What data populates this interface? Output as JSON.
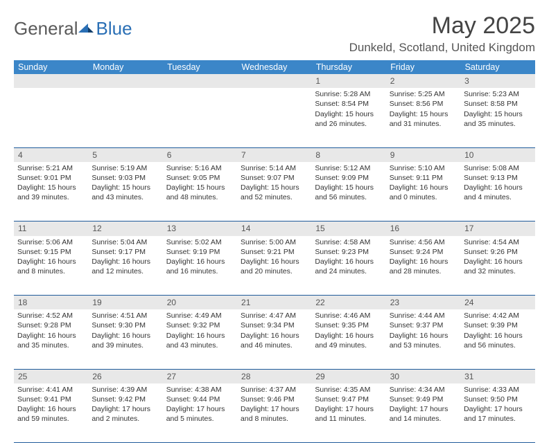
{
  "logo": {
    "part1": "General",
    "part2": "Blue"
  },
  "title": "May 2025",
  "location": "Dunkeld, Scotland, United Kingdom",
  "colors": {
    "header_bg": "#3b86c8",
    "header_text": "#ffffff",
    "daynum_bg": "#e8e8e8",
    "row_divider": "#1d5a9a",
    "logo_blue": "#2a6fb5",
    "logo_gray": "#5a5a5a"
  },
  "weekdays": [
    "Sunday",
    "Monday",
    "Tuesday",
    "Wednesday",
    "Thursday",
    "Friday",
    "Saturday"
  ],
  "weeks": [
    [
      null,
      null,
      null,
      null,
      {
        "n": "1",
        "sunrise": "5:28 AM",
        "sunset": "8:54 PM",
        "dl": "15 hours and 26 minutes."
      },
      {
        "n": "2",
        "sunrise": "5:25 AM",
        "sunset": "8:56 PM",
        "dl": "15 hours and 31 minutes."
      },
      {
        "n": "3",
        "sunrise": "5:23 AM",
        "sunset": "8:58 PM",
        "dl": "15 hours and 35 minutes."
      }
    ],
    [
      {
        "n": "4",
        "sunrise": "5:21 AM",
        "sunset": "9:01 PM",
        "dl": "15 hours and 39 minutes."
      },
      {
        "n": "5",
        "sunrise": "5:19 AM",
        "sunset": "9:03 PM",
        "dl": "15 hours and 43 minutes."
      },
      {
        "n": "6",
        "sunrise": "5:16 AM",
        "sunset": "9:05 PM",
        "dl": "15 hours and 48 minutes."
      },
      {
        "n": "7",
        "sunrise": "5:14 AM",
        "sunset": "9:07 PM",
        "dl": "15 hours and 52 minutes."
      },
      {
        "n": "8",
        "sunrise": "5:12 AM",
        "sunset": "9:09 PM",
        "dl": "15 hours and 56 minutes."
      },
      {
        "n": "9",
        "sunrise": "5:10 AM",
        "sunset": "9:11 PM",
        "dl": "16 hours and 0 minutes."
      },
      {
        "n": "10",
        "sunrise": "5:08 AM",
        "sunset": "9:13 PM",
        "dl": "16 hours and 4 minutes."
      }
    ],
    [
      {
        "n": "11",
        "sunrise": "5:06 AM",
        "sunset": "9:15 PM",
        "dl": "16 hours and 8 minutes."
      },
      {
        "n": "12",
        "sunrise": "5:04 AM",
        "sunset": "9:17 PM",
        "dl": "16 hours and 12 minutes."
      },
      {
        "n": "13",
        "sunrise": "5:02 AM",
        "sunset": "9:19 PM",
        "dl": "16 hours and 16 minutes."
      },
      {
        "n": "14",
        "sunrise": "5:00 AM",
        "sunset": "9:21 PM",
        "dl": "16 hours and 20 minutes."
      },
      {
        "n": "15",
        "sunrise": "4:58 AM",
        "sunset": "9:23 PM",
        "dl": "16 hours and 24 minutes."
      },
      {
        "n": "16",
        "sunrise": "4:56 AM",
        "sunset": "9:24 PM",
        "dl": "16 hours and 28 minutes."
      },
      {
        "n": "17",
        "sunrise": "4:54 AM",
        "sunset": "9:26 PM",
        "dl": "16 hours and 32 minutes."
      }
    ],
    [
      {
        "n": "18",
        "sunrise": "4:52 AM",
        "sunset": "9:28 PM",
        "dl": "16 hours and 35 minutes."
      },
      {
        "n": "19",
        "sunrise": "4:51 AM",
        "sunset": "9:30 PM",
        "dl": "16 hours and 39 minutes."
      },
      {
        "n": "20",
        "sunrise": "4:49 AM",
        "sunset": "9:32 PM",
        "dl": "16 hours and 43 minutes."
      },
      {
        "n": "21",
        "sunrise": "4:47 AM",
        "sunset": "9:34 PM",
        "dl": "16 hours and 46 minutes."
      },
      {
        "n": "22",
        "sunrise": "4:46 AM",
        "sunset": "9:35 PM",
        "dl": "16 hours and 49 minutes."
      },
      {
        "n": "23",
        "sunrise": "4:44 AM",
        "sunset": "9:37 PM",
        "dl": "16 hours and 53 minutes."
      },
      {
        "n": "24",
        "sunrise": "4:42 AM",
        "sunset": "9:39 PM",
        "dl": "16 hours and 56 minutes."
      }
    ],
    [
      {
        "n": "25",
        "sunrise": "4:41 AM",
        "sunset": "9:41 PM",
        "dl": "16 hours and 59 minutes."
      },
      {
        "n": "26",
        "sunrise": "4:39 AM",
        "sunset": "9:42 PM",
        "dl": "17 hours and 2 minutes."
      },
      {
        "n": "27",
        "sunrise": "4:38 AM",
        "sunset": "9:44 PM",
        "dl": "17 hours and 5 minutes."
      },
      {
        "n": "28",
        "sunrise": "4:37 AM",
        "sunset": "9:46 PM",
        "dl": "17 hours and 8 minutes."
      },
      {
        "n": "29",
        "sunrise": "4:35 AM",
        "sunset": "9:47 PM",
        "dl": "17 hours and 11 minutes."
      },
      {
        "n": "30",
        "sunrise": "4:34 AM",
        "sunset": "9:49 PM",
        "dl": "17 hours and 14 minutes."
      },
      {
        "n": "31",
        "sunrise": "4:33 AM",
        "sunset": "9:50 PM",
        "dl": "17 hours and 17 minutes."
      }
    ]
  ],
  "labels": {
    "sunrise": "Sunrise:",
    "sunset": "Sunset:",
    "daylight": "Daylight:"
  }
}
